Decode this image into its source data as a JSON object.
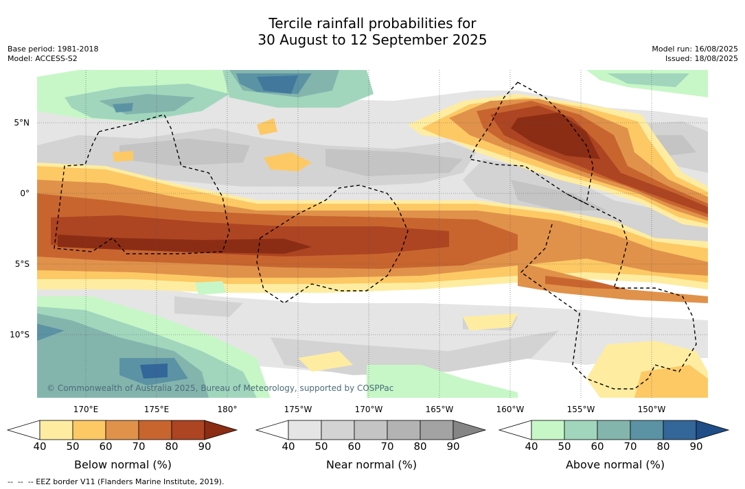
{
  "title": {
    "line1": "Tercile rainfall probabilities for",
    "line2": "30 August to 12 September 2025"
  },
  "meta_left": {
    "base_period": "Base period: 1981-2018",
    "model": "Model: ACCESS-S2"
  },
  "meta_right": {
    "model_run": "Model run: 16/08/2025",
    "issued": "Issued: 18/08/2025"
  },
  "map": {
    "lat_labels": [
      "5°N",
      "0°",
      "5°S",
      "10°S"
    ],
    "lon_labels": [
      "170°E",
      "175°E",
      "180°",
      "175°W",
      "170°W",
      "165°W",
      "160°W",
      "155°W",
      "150°W"
    ],
    "copyright": "© Commonwealth of Australia 2025, Bureau of Meteorology, supported by COSPPac"
  },
  "colorbars": [
    {
      "title": "Below normal (%)",
      "ticks": [
        "40",
        "50",
        "60",
        "70",
        "80",
        "90"
      ],
      "colors": [
        "#ffffff",
        "#feeda1",
        "#fdc965",
        "#e0924a",
        "#c8652f",
        "#ad4422",
        "#8b2d14"
      ]
    },
    {
      "title": "Near normal (%)",
      "ticks": [
        "40",
        "50",
        "60",
        "70",
        "80",
        "90"
      ],
      "colors": [
        "#ffffff",
        "#e5e5e5",
        "#d3d3d3",
        "#c4c4c4",
        "#b3b3b3",
        "#a3a3a3",
        "#858585"
      ]
    },
    {
      "title": "Above normal (%)",
      "ticks": [
        "40",
        "50",
        "60",
        "70",
        "80",
        "90"
      ],
      "colors": [
        "#ffffff",
        "#c7f7c7",
        "#a1d6bd",
        "#84b5ad",
        "#5b93a4",
        "#336699",
        "#1f4e86"
      ]
    }
  ],
  "footer": "--  --  -- EEZ border V11 (Flanders Marine Institute, 2019)."
}
